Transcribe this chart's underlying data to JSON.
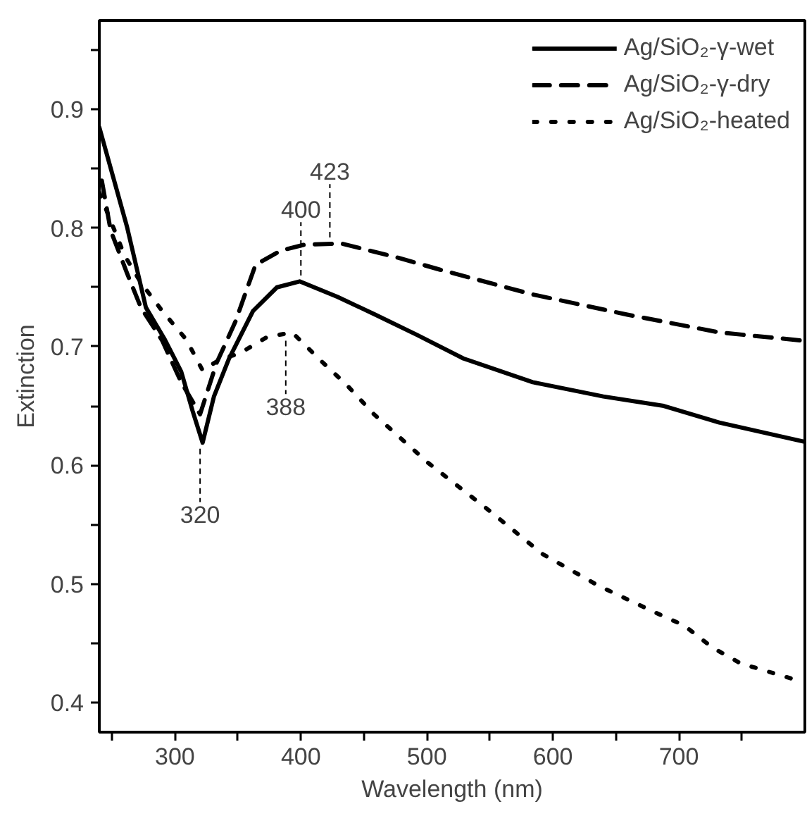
{
  "chart_data": {
    "type": "line",
    "xlabel": "Wavelength (nm)",
    "ylabel": "Extinction",
    "xlim": [
      240,
      800
    ],
    "ylim": [
      0.375,
      0.975
    ],
    "xticks": [
      {
        "value": 250,
        "label": null
      },
      300,
      {
        "value": 350,
        "label": null
      },
      400,
      {
        "value": 450,
        "label": null
      },
      500,
      {
        "value": 550,
        "label": null
      },
      600,
      {
        "value": 650,
        "label": null
      },
      700,
      {
        "value": 750,
        "label": null
      }
    ],
    "yticks": [
      0.4,
      {
        "value": 0.45,
        "label": null
      },
      0.5,
      {
        "value": 0.55,
        "label": null
      },
      0.6,
      {
        "value": 0.65,
        "label": null
      },
      0.7,
      {
        "value": 0.75,
        "label": null
      },
      0.8,
      {
        "value": 0.85,
        "label": null
      },
      0.9,
      {
        "value": 0.95,
        "label": null
      }
    ],
    "grid": false,
    "legend": "top right",
    "marker": "none",
    "series": [
      {
        "name": "Ag/SiO₂-γ-wet",
        "color": "#000000",
        "line_style": "solid",
        "x": [
          240,
          262,
          277,
          292,
          305,
          314,
          322,
          331,
          343,
          362,
          381,
          399,
          429,
          459,
          492,
          529,
          584,
          640,
          688,
          732,
          799
        ],
        "values": [
          0.885,
          0.801,
          0.733,
          0.706,
          0.679,
          0.646,
          0.619,
          0.658,
          0.69,
          0.73,
          0.75,
          0.755,
          0.742,
          0.727,
          0.71,
          0.69,
          0.67,
          0.658,
          0.65,
          0.636,
          0.62
        ]
      },
      {
        "name": "Ag/SiO₂-γ-dry",
        "color": "#000000",
        "line_style": "dashed",
        "x": [
          242,
          249,
          262,
          273,
          290,
          305,
          320,
          333,
          348,
          364,
          384,
          403,
          432,
          477,
          510,
          584,
          659,
          732,
          799
        ],
        "values": [
          0.84,
          0.798,
          0.762,
          0.733,
          0.705,
          0.67,
          0.643,
          0.686,
          0.721,
          0.769,
          0.781,
          0.786,
          0.787,
          0.775,
          0.765,
          0.744,
          0.727,
          0.712,
          0.705
        ]
      },
      {
        "name": "Ag/SiO₂-heated",
        "color": "#000000",
        "line_style": "dotted",
        "x": [
          240,
          260,
          273,
          290,
          309,
          322,
          337,
          351,
          373,
          393,
          416,
          437,
          458,
          479,
          501,
          548,
          592,
          637,
          681,
          704,
          727,
          749,
          796
        ],
        "values": [
          0.83,
          0.777,
          0.754,
          0.73,
          0.706,
          0.68,
          0.69,
          0.694,
          0.708,
          0.712,
          0.688,
          0.667,
          0.643,
          0.623,
          0.602,
          0.563,
          0.525,
          0.498,
          0.476,
          0.465,
          0.446,
          0.433,
          0.418
        ]
      }
    ],
    "annotations": [
      {
        "text": "320",
        "x": 320,
        "y": 0.619
      },
      {
        "text": "388",
        "x": 388,
        "y": 0.71
      },
      {
        "text": "400",
        "x": 400,
        "y": 0.755
      },
      {
        "text": "423",
        "x": 423,
        "y": 0.787
      }
    ]
  }
}
